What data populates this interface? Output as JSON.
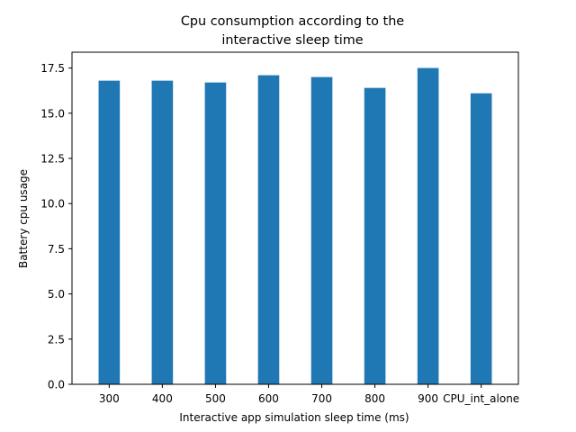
{
  "chart_data": {
    "type": "bar",
    "title_lines": [
      "Cpu consumption according to the",
      "interactive sleep time"
    ],
    "xlabel": "Interactive app simulation sleep time (ms)",
    "ylabel": "Battery cpu usage",
    "categories": [
      "300",
      "400",
      "500",
      "600",
      "700",
      "800",
      "900",
      "CPU_int_alone"
    ],
    "values": [
      16.8,
      16.8,
      16.7,
      17.1,
      17.0,
      16.4,
      17.5,
      16.1
    ],
    "ylim": [
      0,
      18.375
    ],
    "yticks": [
      0.0,
      2.5,
      5.0,
      7.5,
      10.0,
      12.5,
      15.0,
      17.5
    ],
    "ytick_labels": [
      "0.0",
      "2.5",
      "5.0",
      "7.5",
      "10.0",
      "12.5",
      "15.0",
      "17.5"
    ],
    "bar_color": "#1f77b4",
    "grid": false,
    "legend": "none"
  }
}
